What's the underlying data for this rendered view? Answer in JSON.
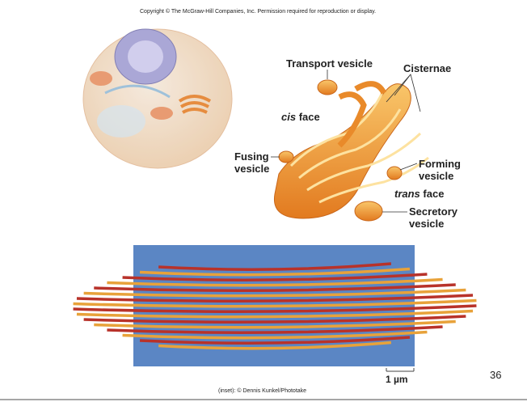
{
  "copyright": "Copyright © The McGraw-Hill Companies, Inc. Permission required for reproduction or display.",
  "labels": {
    "transport_vesicle": "Transport vesicle",
    "cisternae": "Cisternae",
    "cis_face": {
      "italic": "cis",
      "text": "face"
    },
    "fusing_vesicle": "Fusing vesicle",
    "forming_vesicle": "Forming vesicle",
    "trans_face": {
      "italic": "trans",
      "text": "face"
    },
    "secretory_vesicle": "Secretory vesicle"
  },
  "scale_bar": "1 µm",
  "page_number": "36",
  "credit": "(inset): © Dennis Kunkel/Phototake"
}
